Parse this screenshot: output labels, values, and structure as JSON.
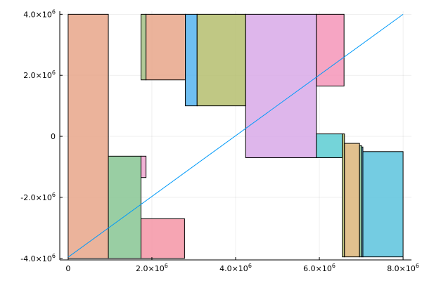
{
  "chart_data": {
    "type": "area",
    "title": "",
    "xlabel": "",
    "ylabel": "",
    "xlim": [
      -200000,
      8200000
    ],
    "ylim": [
      -4050000,
      4100000
    ],
    "grid": true,
    "legend": "none",
    "x_ticks": [
      {
        "value": 0,
        "base": "0",
        "exp": ""
      },
      {
        "value": 2000000,
        "base": "2.0×10",
        "exp": "6"
      },
      {
        "value": 4000000,
        "base": "4.0×10",
        "exp": "6"
      },
      {
        "value": 6000000,
        "base": "6.0×10",
        "exp": "6"
      },
      {
        "value": 8000000,
        "base": "8.0×10",
        "exp": "6"
      }
    ],
    "y_ticks": [
      {
        "value": -4000000,
        "base": "-4.0×10",
        "exp": "6"
      },
      {
        "value": -2000000,
        "base": "-2.0×10",
        "exp": "6"
      },
      {
        "value": 0,
        "base": "0",
        "exp": ""
      },
      {
        "value": 2000000,
        "base": "2.0×10",
        "exp": "6"
      },
      {
        "value": 4000000,
        "base": "4.0×10",
        "exp": "6"
      }
    ],
    "rectangles": [
      {
        "x0": 0,
        "x1": 960000,
        "y0": -4000000,
        "y1": 4000000,
        "color": "#e8a68a"
      },
      {
        "x0": 960000,
        "x1": 1740000,
        "y0": -4000000,
        "y1": -650000,
        "color": "#87c593"
      },
      {
        "x0": 1740000,
        "x1": 1860000,
        "y0": -1350000,
        "y1": -650000,
        "color": "#f0a6cf"
      },
      {
        "x0": 1740000,
        "x1": 1860000,
        "y0": 1850000,
        "y1": 4000000,
        "color": "#a5c186"
      },
      {
        "x0": 1860000,
        "x1": 2800000,
        "y0": 1850000,
        "y1": 4000000,
        "color": "#e8a68a"
      },
      {
        "x0": 1740000,
        "x1": 2780000,
        "y0": -4000000,
        "y1": -2700000,
        "color": "#f495a6"
      },
      {
        "x0": 2800000,
        "x1": 3080000,
        "y0": 1000000,
        "y1": 4000000,
        "color": "#56b4f0"
      },
      {
        "x0": 3080000,
        "x1": 4240000,
        "y0": 1000000,
        "y1": 4000000,
        "color": "#b5be6e"
      },
      {
        "x0": 4240000,
        "x1": 5930000,
        "y0": -700000,
        "y1": 4000000,
        "color": "#d8a9e8"
      },
      {
        "x0": 5930000,
        "x1": 6590000,
        "y0": 1650000,
        "y1": 4000000,
        "color": "#f495b8"
      },
      {
        "x0": 5930000,
        "x1": 6550000,
        "y0": -700000,
        "y1": 80000,
        "color": "#5ccdd2"
      },
      {
        "x0": 6550000,
        "x1": 6600000,
        "y0": -3950000,
        "y1": 80000,
        "color": "#b5be6e"
      },
      {
        "x0": 6600000,
        "x1": 6960000,
        "y0": -3950000,
        "y1": -230000,
        "color": "#dcb57a"
      },
      {
        "x0": 6960000,
        "x1": 7010000,
        "y0": -3950000,
        "y1": -310000,
        "color": "#87c593"
      },
      {
        "x0": 7010000,
        "x1": 7040000,
        "y0": -3950000,
        "y1": -350000,
        "color": "#56b4f0"
      },
      {
        "x0": 7040000,
        "x1": 8000000,
        "y0": -3950000,
        "y1": -500000,
        "color": "#5cc3dd"
      }
    ],
    "series": [
      {
        "x": [
          0,
          8000000
        ],
        "y": [
          -3960000,
          4000000
        ],
        "color": "#009af9"
      }
    ]
  }
}
